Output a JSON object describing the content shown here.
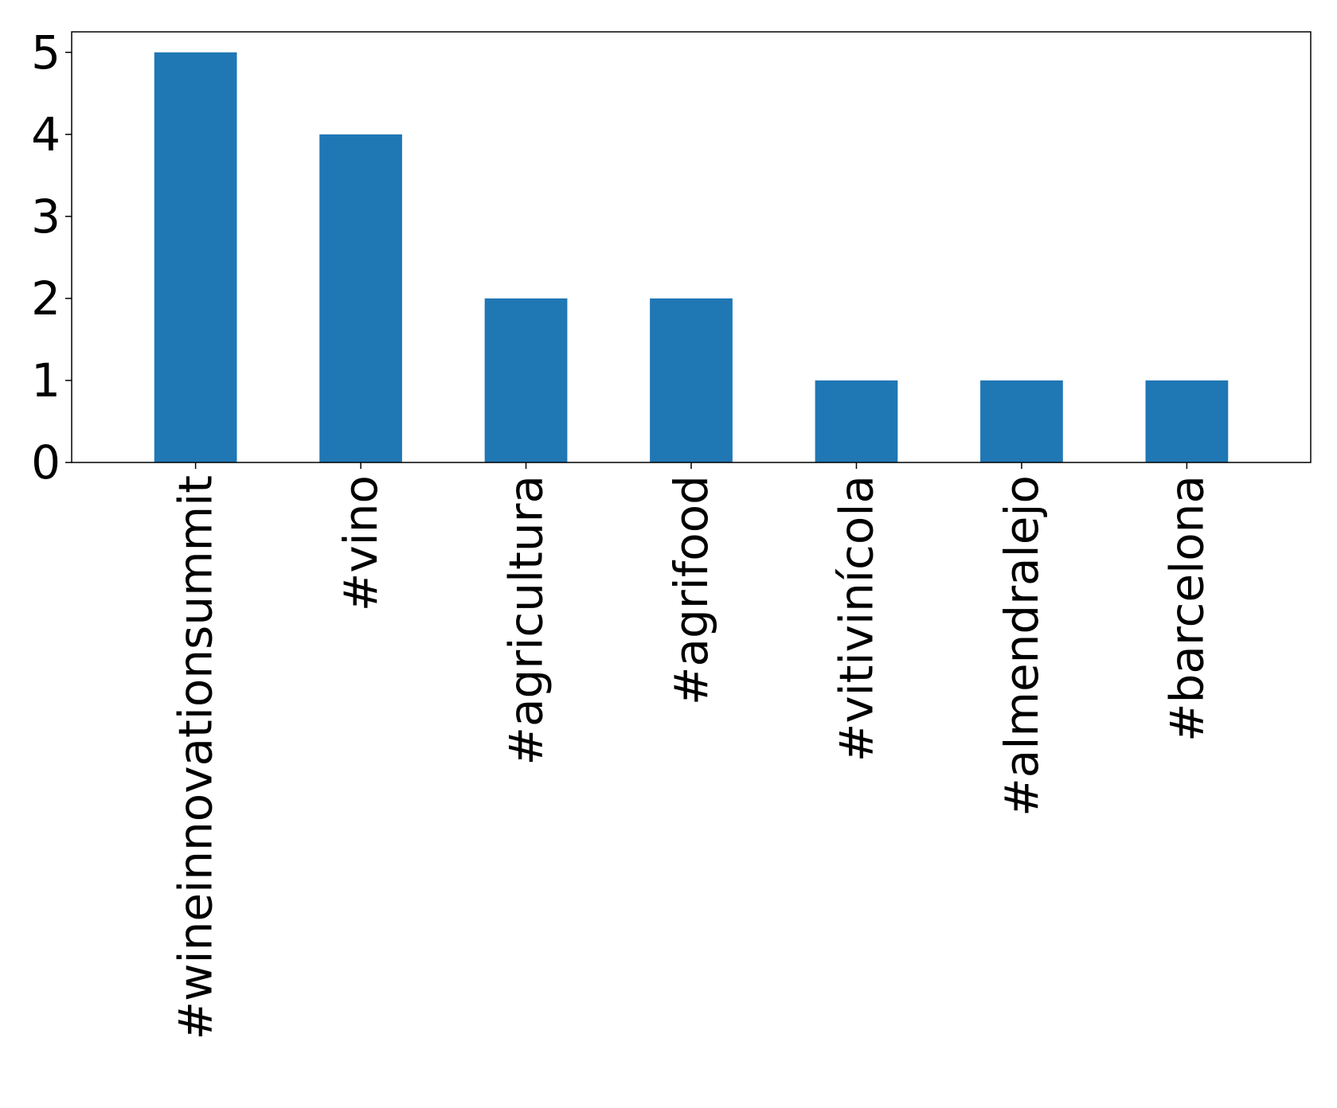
{
  "chart_data": {
    "type": "bar",
    "categories": [
      "#wineinnovationsummit",
      "#vino",
      "#agricultura",
      "#agrifood",
      "#vitivinícola",
      "#almendralejo",
      "#barcelona"
    ],
    "values": [
      5,
      4,
      2,
      2,
      1,
      1,
      1
    ],
    "ylim": [
      0,
      5.25
    ],
    "yticks": [
      0,
      1,
      2,
      3,
      4,
      5
    ],
    "xtick_rotation": "vertical",
    "grid": false,
    "legend": "none",
    "bar_color": "#1f77b4"
  }
}
